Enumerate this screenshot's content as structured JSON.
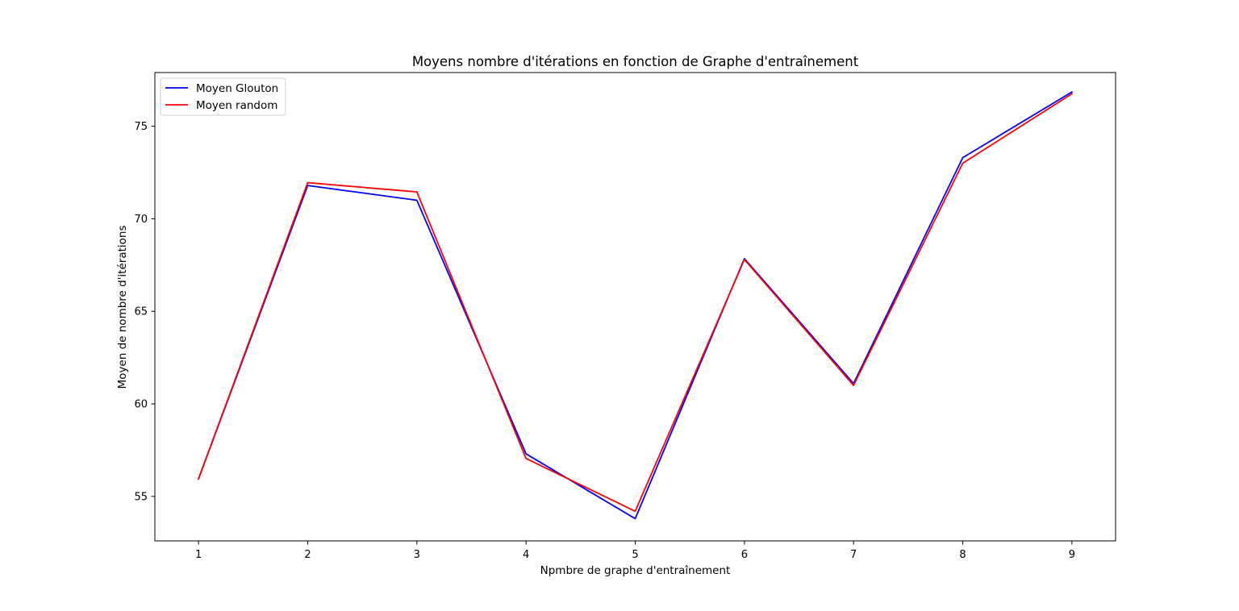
{
  "chart_data": {
    "type": "line",
    "title": "Moyens nombre d'itérations en fonction de Graphe d'entraînement",
    "xlabel": "Npmbre de graphe d'entraînement",
    "ylabel": "Moyen de nombre d'itérations",
    "x": [
      1,
      2,
      3,
      4,
      5,
      6,
      7,
      8,
      9
    ],
    "x_ticks": [
      "1",
      "2",
      "3",
      "4",
      "5",
      "6",
      "7",
      "8",
      "9"
    ],
    "y_ticks": [
      "55",
      "60",
      "65",
      "70",
      "75"
    ],
    "xlim": [
      0.6,
      9.4
    ],
    "ylim": [
      52.6,
      77.9
    ],
    "grid": false,
    "legend_position": "upper-left",
    "series": [
      {
        "name": "Moyen Glouton",
        "color": "#0000ff",
        "values": [
          55.95,
          71.8,
          71.0,
          57.3,
          53.8,
          67.85,
          61.1,
          73.3,
          76.85
        ]
      },
      {
        "name": "Moyen random",
        "color": "#ff0000",
        "values": [
          55.95,
          71.95,
          71.45,
          57.05,
          54.2,
          67.8,
          61.0,
          73.0,
          76.75
        ]
      }
    ]
  }
}
